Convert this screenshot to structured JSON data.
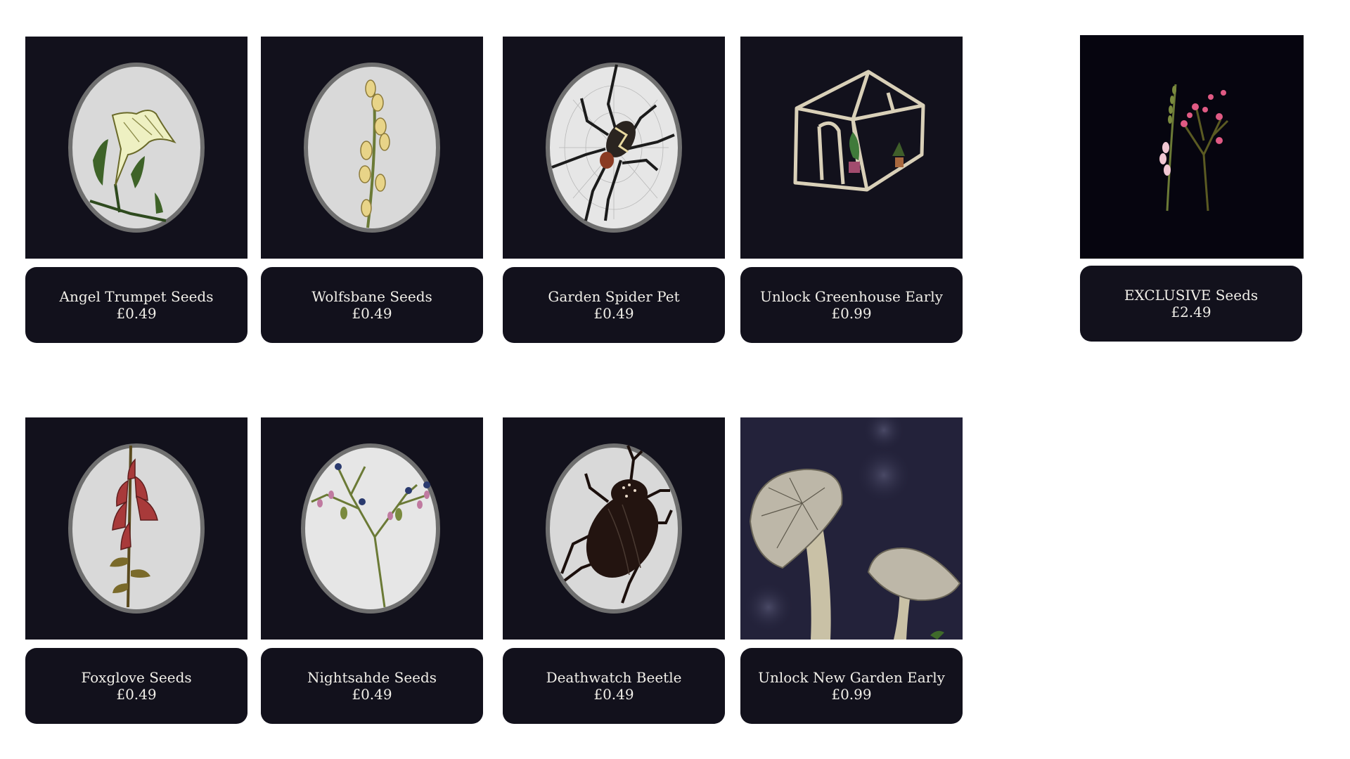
{
  "shop": {
    "items": [
      {
        "name": "Angel Trumpet Seeds",
        "price": "£0.49",
        "image": "angel-trumpet-flower"
      },
      {
        "name": "Wolfsbane Seeds",
        "price": "£0.49",
        "image": "wolfsbane-plant"
      },
      {
        "name": "Garden Spider Pet",
        "price": "£0.49",
        "image": "garden-spider"
      },
      {
        "name": "Unlock Greenhouse Early",
        "price": "£0.99",
        "image": "greenhouse"
      },
      {
        "name": "EXCLUSIVE Seeds",
        "price": "£2.49",
        "image": "foxglove-and-pink-flowers"
      },
      {
        "name": "Foxglove Seeds",
        "price": "£0.49",
        "image": "foxglove-plant"
      },
      {
        "name": "Nightsahde Seeds",
        "price": "£0.49",
        "image": "nightshade-plant"
      },
      {
        "name": "Deathwatch Beetle",
        "price": "£0.49",
        "image": "deathwatch-beetle"
      },
      {
        "name": "Unlock New Garden Early",
        "price": "£0.99",
        "image": "mushroom-garden"
      }
    ]
  },
  "colors": {
    "card_bg": "#12111c",
    "card_text": "#f1efe9",
    "oval_fill": "#d9d9d9",
    "oval_border": "#6f6f6f",
    "page_bg": "#ffffff"
  }
}
